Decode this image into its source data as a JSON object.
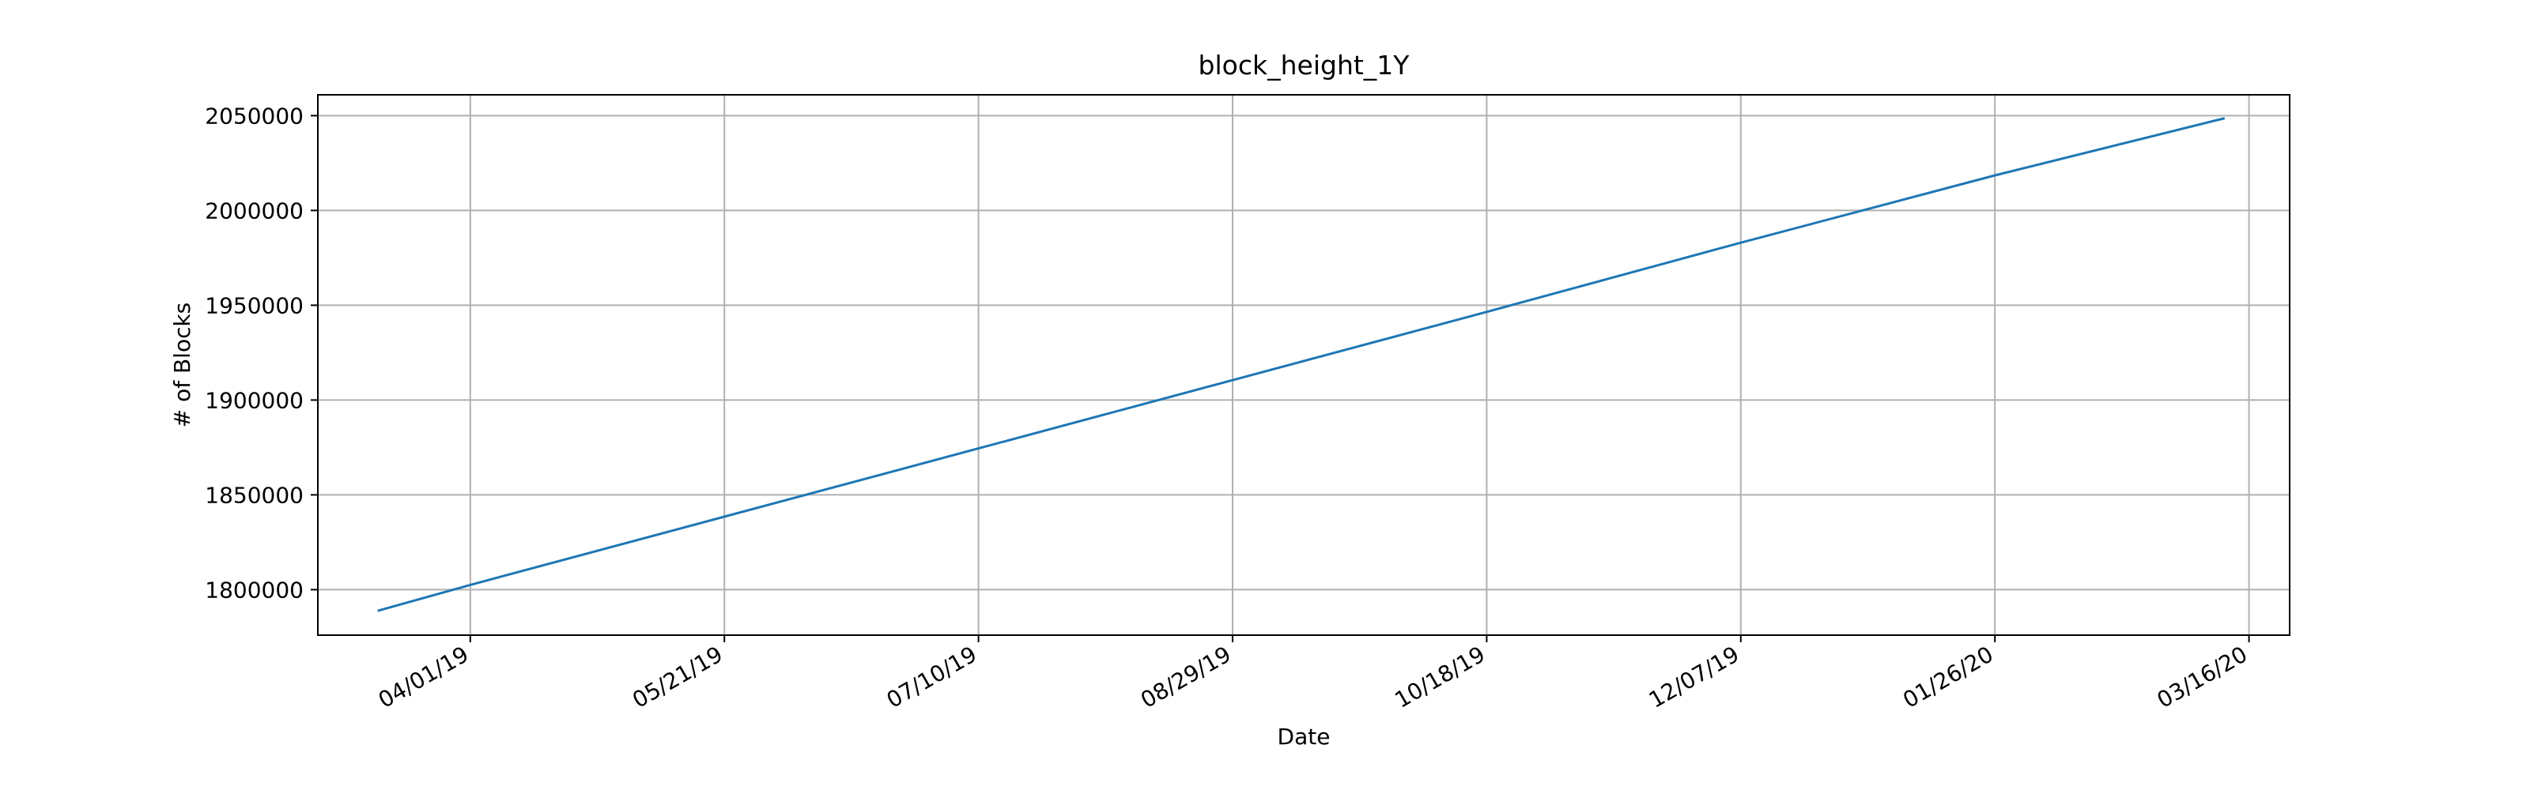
{
  "chart_data": {
    "type": "line",
    "title": "block_height_1Y",
    "xlabel": "Date",
    "ylabel": "# of Blocks",
    "x_ticks": [
      "04/01/19",
      "05/21/19",
      "07/10/19",
      "08/29/19",
      "10/18/19",
      "12/07/19",
      "01/26/20",
      "03/16/20"
    ],
    "x_tick_dates": [
      "2019-04-01",
      "2019-05-21",
      "2019-07-10",
      "2019-08-29",
      "2019-10-18",
      "2019-12-07",
      "2020-01-26",
      "2020-03-16"
    ],
    "xlim": [
      "2019-03-02",
      "2020-03-24"
    ],
    "y_ticks": [
      1800000,
      1850000,
      1900000,
      1950000,
      2000000,
      2050000
    ],
    "ylim": [
      1776000,
      2061000
    ],
    "grid": true,
    "colors": {
      "line": "#1f77b4"
    },
    "series": [
      {
        "x": [
          "2019-03-14",
          "2019-04-01",
          "2019-05-21",
          "2019-07-10",
          "2019-08-29",
          "2019-10-18",
          "2019-11-26",
          "2019-12-07",
          "2020-01-26",
          "2020-03-11"
        ],
        "y": [
          1789000,
          1802500,
          1838500,
          1874500,
          1910500,
          1946500,
          1975000,
          1983000,
          2018500,
          2048500
        ]
      }
    ]
  }
}
